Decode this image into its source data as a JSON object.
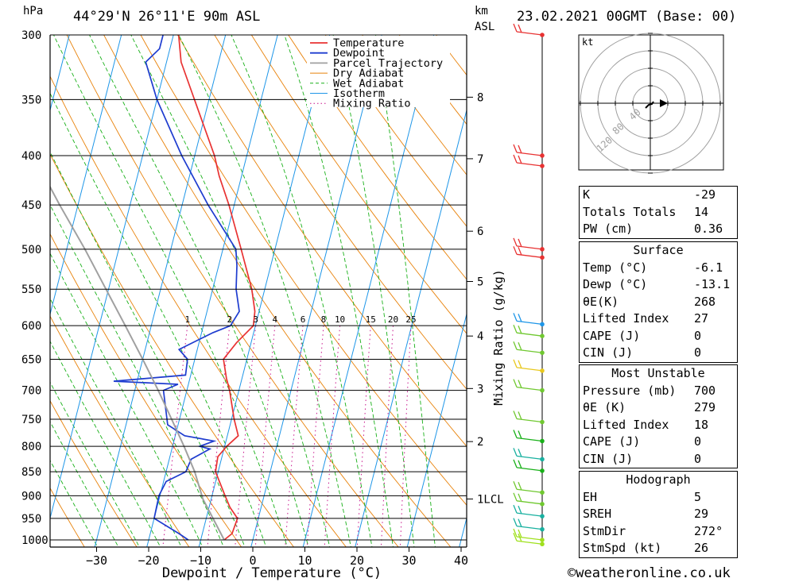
{
  "header": {
    "location": "44°29'N 26°11'E 90m ASL",
    "datetime": "23.02.2021 00GMT (Base: 00)",
    "pressure_unit": "hPa",
    "height_unit_line1": "km",
    "height_unit_line2": "ASL"
  },
  "legend": [
    "Temperature",
    "Dewpoint",
    "Parcel Trajectory",
    "Dry Adiabat",
    "Wet Adiabat",
    "Isotherm",
    "Mixing Ratio"
  ],
  "colors": {
    "temperature": "#e83232",
    "dewpoint": "#1e3ccf",
    "parcel": "#a0a0a0",
    "dry_adiabat": "#e8820a",
    "wet_adiabat": "#18b018",
    "isotherm": "#1e96e8",
    "mixing_ratio": "#c8148c"
  },
  "chart_data": {
    "type": "line",
    "title": "Skew-T log-P sounding",
    "xlabel": "Dewpoint / Temperature (°C)",
    "ylabel": "hPa",
    "right_axis_label": "Mixing Ratio (g/kg)",
    "pressure_levels": [
      300,
      350,
      400,
      450,
      500,
      550,
      600,
      650,
      700,
      750,
      800,
      850,
      900,
      950,
      1000
    ],
    "temperature_ticks": [
      -30,
      -20,
      -10,
      0,
      10,
      20,
      30,
      40
    ],
    "height_ticks_km": [
      "8",
      "7",
      "6",
      "5",
      "4",
      "3",
      "2",
      "1LCL"
    ],
    "height_tick_pressures": [
      348,
      403,
      479,
      540,
      615,
      697,
      791,
      907
    ],
    "mixing_ratio_labels": [
      "1",
      "2",
      "3",
      "4",
      "6",
      "8",
      "10",
      "15",
      "20",
      "25"
    ],
    "series": [
      {
        "name": "Temperature",
        "points": [
          [
            1000,
            -5.5
          ],
          [
            985,
            -4.3
          ],
          [
            950,
            -4.0
          ],
          [
            925,
            -6.0
          ],
          [
            900,
            -7.5
          ],
          [
            850,
            -10.5
          ],
          [
            820,
            -10.8
          ],
          [
            800,
            -9.6
          ],
          [
            780,
            -7.9
          ],
          [
            750,
            -9.5
          ],
          [
            700,
            -11.8
          ],
          [
            680,
            -13.0
          ],
          [
            650,
            -14.5
          ],
          [
            625,
            -12.8
          ],
          [
            600,
            -10.4
          ],
          [
            580,
            -10.8
          ],
          [
            550,
            -12.5
          ],
          [
            500,
            -16.5
          ],
          [
            450,
            -21.0
          ],
          [
            420,
            -24.3
          ],
          [
            400,
            -26.2
          ],
          [
            350,
            -32.8
          ],
          [
            320,
            -37.2
          ],
          [
            300,
            -39.0
          ]
        ]
      },
      {
        "name": "Dewpoint",
        "points": [
          [
            1000,
            -12.4
          ],
          [
            985,
            -14.5
          ],
          [
            950,
            -20.0
          ],
          [
            900,
            -20.2
          ],
          [
            870,
            -19.5
          ],
          [
            850,
            -16.2
          ],
          [
            825,
            -15.8
          ],
          [
            805,
            -12.7
          ],
          [
            800,
            -14.8
          ],
          [
            790,
            -12.3
          ],
          [
            780,
            -18.2
          ],
          [
            760,
            -22.0
          ],
          [
            700,
            -24.5
          ],
          [
            690,
            -22.0
          ],
          [
            685,
            -34.5
          ],
          [
            675,
            -21.0
          ],
          [
            650,
            -21.4
          ],
          [
            635,
            -23.5
          ],
          [
            610,
            -17.8
          ],
          [
            600,
            -14.8
          ],
          [
            580,
            -13.8
          ],
          [
            550,
            -15.5
          ],
          [
            520,
            -16.5
          ],
          [
            500,
            -17.5
          ],
          [
            450,
            -25.0
          ],
          [
            400,
            -32.5
          ],
          [
            350,
            -40.0
          ],
          [
            320,
            -44.0
          ],
          [
            310,
            -42.0
          ],
          [
            300,
            -42.0
          ]
        ]
      },
      {
        "name": "Parcel Trajectory",
        "points": [
          [
            1000,
            -5.5
          ],
          [
            907,
            -11.6
          ],
          [
            850,
            -14.5
          ],
          [
            800,
            -17.8
          ],
          [
            750,
            -21.5
          ],
          [
            700,
            -25.5
          ],
          [
            650,
            -30.0
          ],
          [
            600,
            -35.0
          ],
          [
            550,
            -40.5
          ],
          [
            500,
            -46.5
          ],
          [
            450,
            -53.5
          ],
          [
            400,
            -61.0
          ]
        ]
      }
    ],
    "wind_barbs": [
      {
        "p": 300,
        "color": "#e83232"
      },
      {
        "p": 400,
        "color": "#e83232"
      },
      {
        "p": 410,
        "color": "#e83232"
      },
      {
        "p": 500,
        "color": "#e83232"
      },
      {
        "p": 510,
        "color": "#e83232"
      },
      {
        "p": 598,
        "color": "#1e96e8"
      },
      {
        "p": 615,
        "color": "#70c830"
      },
      {
        "p": 640,
        "color": "#70c830"
      },
      {
        "p": 668,
        "color": "#e8c81e"
      },
      {
        "p": 700,
        "color": "#70c830"
      },
      {
        "p": 755,
        "color": "#70c830"
      },
      {
        "p": 790,
        "color": "#18b018"
      },
      {
        "p": 825,
        "color": "#18b0a0"
      },
      {
        "p": 848,
        "color": "#18b018"
      },
      {
        "p": 893,
        "color": "#70c830"
      },
      {
        "p": 918,
        "color": "#70c830"
      },
      {
        "p": 945,
        "color": "#18b0a0"
      },
      {
        "p": 975,
        "color": "#18b0a0"
      },
      {
        "p": 1000,
        "color": "#a0e01e"
      },
      {
        "p": 1010,
        "color": "#a0e01e"
      }
    ]
  },
  "hodograph": {
    "unit": "kt",
    "ring_labels": [
      "40",
      "80",
      "120"
    ]
  },
  "indices": [
    {
      "label": "K",
      "value": "-29"
    },
    {
      "label": "Totals Totals",
      "value": "14"
    },
    {
      "label": "PW (cm)",
      "value": "0.36"
    }
  ],
  "surface": {
    "title": "Surface",
    "rows": [
      {
        "label": "Temp (°C)",
        "value": "-6.1"
      },
      {
        "label": "Dewp (°C)",
        "value": "-13.1"
      },
      {
        "label": "θE(K)",
        "value": "268"
      },
      {
        "label": "Lifted Index",
        "value": "27"
      },
      {
        "label": "CAPE (J)",
        "value": "0"
      },
      {
        "label": "CIN (J)",
        "value": "0"
      }
    ]
  },
  "most_unstable": {
    "title": "Most Unstable",
    "rows": [
      {
        "label": "Pressure (mb)",
        "value": "700"
      },
      {
        "label": "θE (K)",
        "value": "279"
      },
      {
        "label": "Lifted Index",
        "value": "18"
      },
      {
        "label": "CAPE (J)",
        "value": "0"
      },
      {
        "label": "CIN (J)",
        "value": "0"
      }
    ]
  },
  "hodograph_params": {
    "title": "Hodograph",
    "rows": [
      {
        "label": "EH",
        "value": "5"
      },
      {
        "label": "SREH",
        "value": "29"
      },
      {
        "label": "StmDir",
        "value": "272°"
      },
      {
        "label": "StmSpd (kt)",
        "value": "26"
      }
    ]
  },
  "copyright": "©weatheronline.co.uk"
}
